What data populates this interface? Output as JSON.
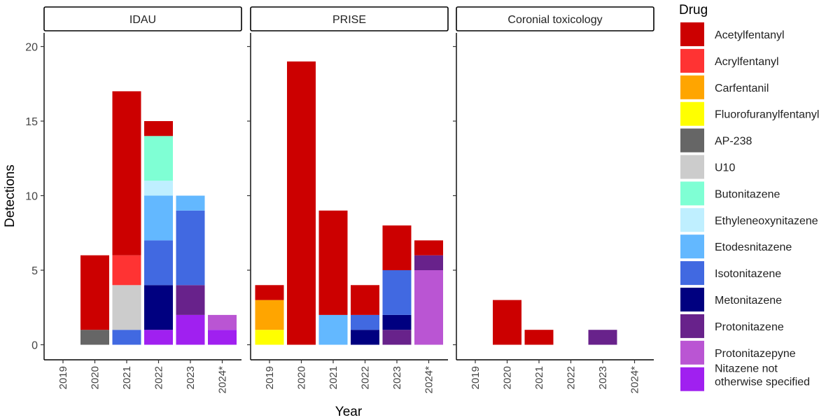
{
  "chart_data": {
    "type": "bar",
    "stacked": true,
    "y_label": "Detections",
    "x_label": "Year",
    "ylim": [
      0,
      21
    ],
    "y_ticks": [
      0,
      5,
      10,
      15,
      20
    ],
    "legend_title": "Drug",
    "legend_position": "right",
    "grid": false,
    "categories": [
      "2019",
      "2020",
      "2021",
      "2022",
      "2023",
      "2024*"
    ],
    "drugs": [
      {
        "key": "acetylfentanyl",
        "label": "Acetylfentanyl",
        "color": "#CC0000"
      },
      {
        "key": "acrylfentanyl",
        "label": "Acrylfentanyl",
        "color": "#FF3333"
      },
      {
        "key": "carfentanil",
        "label": "Carfentanil",
        "color": "#FFA500"
      },
      {
        "key": "fluorofuranylfentanyl",
        "label": "Fluorofuranylfentanyl",
        "color": "#FFFF00"
      },
      {
        "key": "ap238",
        "label": "AP-238",
        "color": "#666666"
      },
      {
        "key": "u10",
        "label": "U10",
        "color": "#CCCCCC"
      },
      {
        "key": "butonitazene",
        "label": "Butonitazene",
        "color": "#7FFFD4"
      },
      {
        "key": "ethyleneoxynitazene",
        "label": "Ethyleneoxynitazene",
        "color": "#BFEFFF"
      },
      {
        "key": "etodesnitazene",
        "label": "Etodesnitazene",
        "color": "#63B8FF"
      },
      {
        "key": "isotonitazene",
        "label": "Isotonitazene",
        "color": "#4169E1"
      },
      {
        "key": "metonitazene",
        "label": "Metonitazene",
        "color": "#000080"
      },
      {
        "key": "protonitazene",
        "label": "Protonitazene",
        "color": "#68228B"
      },
      {
        "key": "protonitazepyne",
        "label": "Protonitazepyne",
        "color": "#BA55D3"
      },
      {
        "key": "nitazene_nos",
        "label": "Nitazene not otherwise specified",
        "label_lines": [
          "Nitazene not",
          "otherwise specified"
        ],
        "color": "#A020F0"
      }
    ],
    "panels": [
      {
        "title": "IDAU",
        "bars": [
          {
            "year": "2019",
            "segments": []
          },
          {
            "year": "2020",
            "segments": [
              {
                "drug": "ap238",
                "value": 1
              },
              {
                "drug": "acetylfentanyl",
                "value": 5
              }
            ]
          },
          {
            "year": "2021",
            "segments": [
              {
                "drug": "isotonitazene",
                "value": 1
              },
              {
                "drug": "u10",
                "value": 3
              },
              {
                "drug": "acrylfentanyl",
                "value": 2
              },
              {
                "drug": "acetylfentanyl",
                "value": 11
              }
            ]
          },
          {
            "year": "2022",
            "segments": [
              {
                "drug": "nitazene_nos",
                "value": 1
              },
              {
                "drug": "metonitazene",
                "value": 3
              },
              {
                "drug": "isotonitazene",
                "value": 3
              },
              {
                "drug": "etodesnitazene",
                "value": 3
              },
              {
                "drug": "ethyleneoxynitazene",
                "value": 1
              },
              {
                "drug": "butonitazene",
                "value": 3
              },
              {
                "drug": "acetylfentanyl",
                "value": 1
              }
            ]
          },
          {
            "year": "2023",
            "segments": [
              {
                "drug": "nitazene_nos",
                "value": 2
              },
              {
                "drug": "protonitazene",
                "value": 2
              },
              {
                "drug": "isotonitazene",
                "value": 5
              },
              {
                "drug": "etodesnitazene",
                "value": 1
              }
            ]
          },
          {
            "year": "2024*",
            "segments": [
              {
                "drug": "nitazene_nos",
                "value": 1
              },
              {
                "drug": "protonitazepyne",
                "value": 1
              }
            ]
          }
        ]
      },
      {
        "title": "PRISE",
        "bars": [
          {
            "year": "2019",
            "segments": [
              {
                "drug": "fluorofuranylfentanyl",
                "value": 1
              },
              {
                "drug": "carfentanil",
                "value": 2
              },
              {
                "drug": "acetylfentanyl",
                "value": 1
              }
            ]
          },
          {
            "year": "2020",
            "segments": [
              {
                "drug": "acetylfentanyl",
                "value": 19
              }
            ]
          },
          {
            "year": "2021",
            "segments": [
              {
                "drug": "etodesnitazene",
                "value": 2
              },
              {
                "drug": "acetylfentanyl",
                "value": 7
              }
            ]
          },
          {
            "year": "2022",
            "segments": [
              {
                "drug": "metonitazene",
                "value": 1
              },
              {
                "drug": "isotonitazene",
                "value": 1
              },
              {
                "drug": "acetylfentanyl",
                "value": 2
              }
            ]
          },
          {
            "year": "2023",
            "segments": [
              {
                "drug": "protonitazene",
                "value": 1
              },
              {
                "drug": "metonitazene",
                "value": 1
              },
              {
                "drug": "isotonitazene",
                "value": 3
              },
              {
                "drug": "acetylfentanyl",
                "value": 3
              }
            ]
          },
          {
            "year": "2024*",
            "segments": [
              {
                "drug": "protonitazepyne",
                "value": 5
              },
              {
                "drug": "protonitazene",
                "value": 1
              },
              {
                "drug": "acetylfentanyl",
                "value": 1
              }
            ]
          }
        ]
      },
      {
        "title": "Coronial toxicology",
        "bars": [
          {
            "year": "2019",
            "segments": []
          },
          {
            "year": "2020",
            "segments": [
              {
                "drug": "acetylfentanyl",
                "value": 3
              }
            ]
          },
          {
            "year": "2021",
            "segments": [
              {
                "drug": "acetylfentanyl",
                "value": 1
              }
            ]
          },
          {
            "year": "2022",
            "segments": []
          },
          {
            "year": "2023",
            "segments": [
              {
                "drug": "protonitazene",
                "value": 1
              }
            ]
          },
          {
            "year": "2024*",
            "segments": []
          }
        ]
      }
    ]
  }
}
